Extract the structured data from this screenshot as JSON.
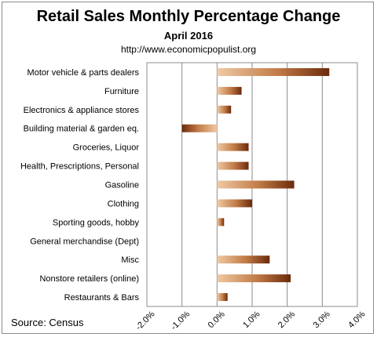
{
  "chart_data": {
    "type": "bar",
    "orientation": "horizontal",
    "title": "Retail Sales Monthly  Percentage Change",
    "subtitle": "April 2016",
    "url": "http://www.economicpopulist.org",
    "source": "Source:  Census",
    "categories": [
      "Motor vehicle & parts dealers",
      "Furniture",
      "Electronics & appliance stores",
      "Building material & garden eq.",
      "Groceries, Liquor",
      "Health, Prescriptions, Personal",
      "Gasoline",
      "Clothing",
      "Sporting goods, hobby",
      "General merchandise (Dept)",
      "Misc",
      "Nonstore retailers (online)",
      "Restaurants & Bars"
    ],
    "values": [
      3.2,
      0.7,
      0.4,
      -1.0,
      0.9,
      0.9,
      2.2,
      1.0,
      0.2,
      0.0,
      1.5,
      2.1,
      0.3
    ],
    "xlim": [
      -2.0,
      4.0
    ],
    "xticks": [
      "-2.0%",
      "-1.0%",
      "0.0%",
      "1.0%",
      "2.0%",
      "3.0%",
      "4.0%"
    ],
    "xtick_values": [
      -2.0,
      -1.0,
      0.0,
      1.0,
      2.0,
      3.0,
      4.0
    ],
    "grid": "vertical",
    "colors": {
      "bar_light": "#f0c9a4",
      "bar_mid": "#c07a45",
      "bar_dark": "#6b2a0c",
      "grid": "#8c8c8c"
    }
  }
}
